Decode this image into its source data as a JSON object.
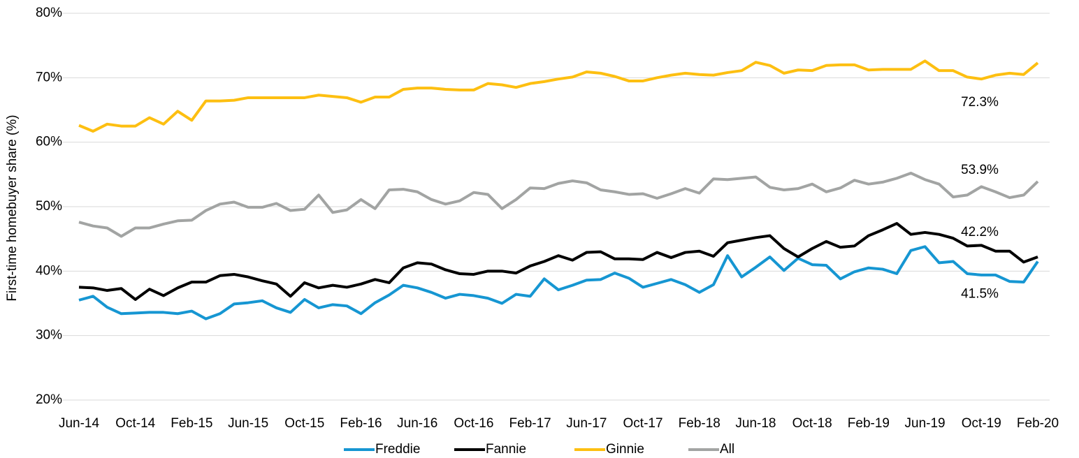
{
  "chart_data": {
    "type": "line",
    "y_label": "First-time homebuyer share (%)",
    "categories": [
      "Jun-14",
      null,
      null,
      null,
      "Oct-14",
      null,
      null,
      null,
      "Feb-15",
      null,
      null,
      null,
      "Jun-15",
      null,
      null,
      null,
      "Oct-15",
      null,
      null,
      null,
      "Feb-16",
      null,
      null,
      null,
      "Jun-16",
      null,
      null,
      null,
      "Oct-16",
      null,
      null,
      null,
      "Feb-17",
      null,
      null,
      null,
      "Jun-17",
      null,
      null,
      null,
      "Oct-17",
      null,
      null,
      null,
      "Feb-18",
      null,
      null,
      null,
      "Jun-18",
      null,
      null,
      null,
      "Oct-18",
      null,
      null,
      null,
      "Feb-19",
      null,
      null,
      null,
      "Jun-19",
      null,
      null,
      null,
      "Oct-19",
      null,
      null,
      null,
      "Feb-20"
    ],
    "ylim": [
      20,
      80
    ],
    "yticks": [
      {
        "value": 20,
        "label": "20%"
      },
      {
        "value": 30,
        "label": "30%"
      },
      {
        "value": 40,
        "label": "40%"
      },
      {
        "value": 50,
        "label": "50%"
      },
      {
        "value": 60,
        "label": "60%"
      },
      {
        "value": 70,
        "label": "70%"
      },
      {
        "value": 80,
        "label": "80%"
      }
    ],
    "grid": true,
    "legend": "bottom",
    "series": [
      {
        "name": "Freddie",
        "color": "#1696d2",
        "values": [
          35.5,
          36.1,
          34.4,
          33.4,
          33.5,
          33.6,
          33.6,
          33.4,
          33.8,
          32.6,
          33.4,
          34.9,
          35.1,
          35.4,
          34.3,
          33.6,
          35.6,
          34.3,
          34.8,
          34.6,
          33.4,
          35.1,
          36.3,
          37.8,
          37.4,
          36.7,
          35.8,
          36.4,
          36.2,
          35.8,
          35.0,
          36.4,
          36.1,
          38.8,
          37.1,
          37.8,
          38.6,
          38.7,
          39.7,
          38.9,
          37.5,
          38.1,
          38.7,
          37.9,
          36.7,
          37.9,
          42.4,
          39.1,
          40.6,
          42.2,
          40.1,
          42.0,
          41.0,
          40.9,
          38.8,
          39.9,
          40.5,
          40.3,
          39.6,
          43.2,
          43.8,
          41.3,
          41.5,
          39.6,
          39.4,
          39.4,
          38.4,
          38.3,
          41.5
        ],
        "value_labels": [
          null,
          null,
          null,
          null,
          null,
          null,
          null,
          null,
          null,
          null,
          null,
          null,
          null,
          null,
          null,
          null,
          null,
          null,
          null,
          null,
          null,
          null,
          null,
          null,
          null,
          null,
          null,
          null,
          null,
          null,
          null,
          null,
          null,
          null,
          null,
          null,
          null,
          null,
          null,
          null,
          null,
          null,
          null,
          null,
          null,
          null,
          null,
          null,
          null,
          null,
          null,
          null,
          null,
          null,
          null,
          null,
          null,
          null,
          null,
          null,
          null,
          null,
          null,
          null,
          null,
          null,
          null,
          null,
          "41.5%"
        ]
      },
      {
        "name": "Fannie",
        "color": "#000000",
        "values": [
          37.5,
          37.4,
          37.0,
          37.3,
          35.6,
          37.2,
          36.2,
          37.4,
          38.3,
          38.3,
          39.3,
          39.5,
          39.1,
          38.5,
          38.0,
          36.1,
          38.2,
          37.4,
          37.8,
          37.5,
          38.0,
          38.7,
          38.2,
          40.5,
          41.3,
          41.1,
          40.2,
          39.6,
          39.5,
          40.0,
          40.0,
          39.7,
          40.8,
          41.5,
          42.4,
          41.7,
          42.9,
          43.0,
          41.9,
          41.9,
          41.8,
          42.9,
          42.1,
          42.9,
          43.1,
          42.3,
          44.4,
          44.8,
          45.2,
          45.5,
          43.5,
          42.2,
          43.5,
          44.6,
          43.7,
          43.9,
          45.5,
          46.4,
          47.4,
          45.7,
          46.0,
          45.7,
          45.1,
          43.9,
          44.0,
          43.1,
          43.1,
          41.4,
          42.2
        ],
        "value_labels": [
          null,
          null,
          null,
          null,
          null,
          null,
          null,
          null,
          null,
          null,
          null,
          null,
          null,
          null,
          null,
          null,
          null,
          null,
          null,
          null,
          null,
          null,
          null,
          null,
          null,
          null,
          null,
          null,
          null,
          null,
          null,
          null,
          null,
          null,
          null,
          null,
          null,
          null,
          null,
          null,
          null,
          null,
          null,
          null,
          null,
          null,
          null,
          null,
          null,
          null,
          null,
          null,
          null,
          null,
          null,
          null,
          null,
          null,
          null,
          null,
          null,
          null,
          null,
          null,
          null,
          null,
          null,
          null,
          "42.2%"
        ]
      },
      {
        "name": "Ginnie",
        "color": "#fdbf11",
        "values": [
          62.6,
          61.7,
          62.8,
          62.5,
          62.5,
          63.8,
          62.8,
          64.8,
          63.4,
          66.4,
          66.4,
          66.5,
          66.9,
          66.9,
          66.9,
          66.9,
          66.9,
          67.3,
          67.1,
          66.9,
          66.2,
          67.0,
          67.0,
          68.2,
          68.4,
          68.4,
          68.2,
          68.1,
          68.1,
          69.1,
          68.9,
          68.5,
          69.1,
          69.4,
          69.8,
          70.1,
          70.9,
          70.7,
          70.2,
          69.5,
          69.5,
          70.0,
          70.4,
          70.7,
          70.5,
          70.4,
          70.8,
          71.1,
          72.4,
          71.9,
          70.7,
          71.2,
          71.1,
          71.9,
          72.0,
          72.0,
          71.2,
          71.3,
          71.3,
          71.3,
          72.6,
          71.1,
          71.1,
          70.1,
          69.8,
          70.4,
          70.7,
          70.5,
          72.3
        ],
        "value_labels": [
          null,
          null,
          null,
          null,
          null,
          null,
          null,
          null,
          null,
          null,
          null,
          null,
          null,
          null,
          null,
          null,
          null,
          null,
          null,
          null,
          null,
          null,
          null,
          null,
          null,
          null,
          null,
          null,
          null,
          null,
          null,
          null,
          null,
          null,
          null,
          null,
          null,
          null,
          null,
          null,
          null,
          null,
          null,
          null,
          null,
          null,
          null,
          null,
          null,
          null,
          null,
          null,
          null,
          null,
          null,
          null,
          null,
          null,
          null,
          null,
          null,
          null,
          null,
          null,
          null,
          null,
          null,
          null,
          "72.3%"
        ]
      },
      {
        "name": "All",
        "color": "#a2a4a3",
        "values": [
          47.6,
          47.0,
          46.7,
          45.4,
          46.7,
          46.7,
          47.3,
          47.8,
          47.9,
          49.4,
          50.4,
          50.7,
          49.9,
          49.9,
          50.5,
          49.4,
          49.6,
          51.8,
          49.1,
          49.5,
          51.1,
          49.7,
          52.6,
          52.7,
          52.3,
          51.1,
          50.4,
          50.9,
          52.2,
          51.9,
          49.7,
          51.1,
          52.9,
          52.8,
          53.6,
          54.0,
          53.7,
          52.6,
          52.3,
          51.9,
          52.0,
          51.3,
          52.0,
          52.8,
          52.1,
          54.3,
          54.2,
          54.4,
          54.6,
          53.0,
          52.6,
          52.8,
          53.5,
          52.3,
          52.9,
          54.1,
          53.5,
          53.8,
          54.4,
          55.2,
          54.2,
          53.5,
          51.5,
          51.8,
          53.1,
          52.3,
          51.4,
          51.8,
          53.9
        ],
        "value_labels": [
          null,
          null,
          null,
          null,
          null,
          null,
          null,
          null,
          null,
          null,
          null,
          null,
          null,
          null,
          null,
          null,
          null,
          null,
          null,
          null,
          null,
          null,
          null,
          null,
          null,
          null,
          null,
          null,
          null,
          null,
          null,
          null,
          null,
          null,
          null,
          null,
          null,
          null,
          null,
          null,
          null,
          null,
          null,
          null,
          null,
          null,
          null,
          null,
          null,
          null,
          null,
          null,
          null,
          null,
          null,
          null,
          null,
          null,
          null,
          null,
          null,
          null,
          null,
          null,
          null,
          null,
          null,
          null,
          "53.9%"
        ]
      }
    ]
  }
}
